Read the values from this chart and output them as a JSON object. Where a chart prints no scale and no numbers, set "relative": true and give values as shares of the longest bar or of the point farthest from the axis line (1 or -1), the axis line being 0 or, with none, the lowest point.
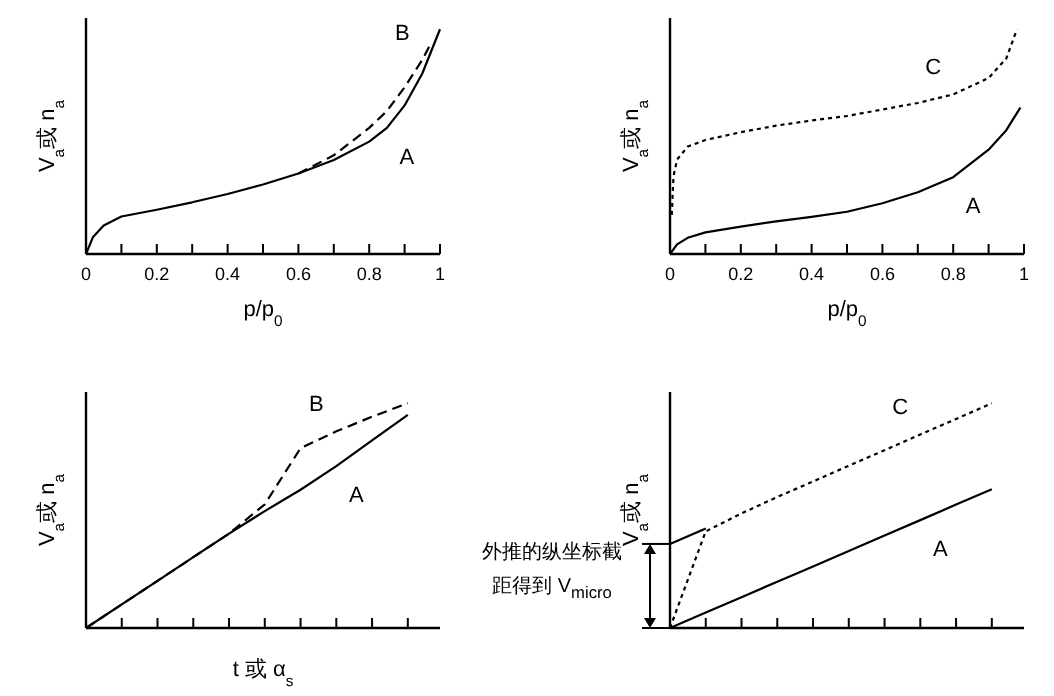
{
  "chart_data": [
    {
      "type": "line",
      "xlabel": "p/p$_{0}$",
      "ylabel": "V$_{a}$或 n$_{a}$",
      "relative": true,
      "xlim": [
        0,
        1
      ],
      "xticks": [
        0,
        {
          "value": 0.1,
          "label": null
        },
        0.2,
        {
          "value": 0.3,
          "label": null
        },
        0.4,
        {
          "value": 0.5,
          "label": null
        },
        0.6,
        {
          "value": 0.7,
          "label": null
        },
        0.8,
        {
          "value": 0.9,
          "label": null
        },
        1
      ],
      "series": [
        {
          "name": "A",
          "color": "#000000",
          "line_style": "solid",
          "x": [
            0,
            0.02,
            0.05,
            0.1,
            0.2,
            0.3,
            0.4,
            0.5,
            0.6,
            0.7,
            0.8,
            0.85,
            0.9,
            0.95,
            1
          ],
          "values": [
            0,
            0.076,
            0.127,
            0.167,
            0.197,
            0.23,
            0.267,
            0.309,
            0.358,
            0.418,
            0.5,
            0.561,
            0.661,
            0.803,
            1
          ]
        },
        {
          "name": "B",
          "color": "#000000",
          "line_style": "dashed",
          "x": [
            0.6,
            0.7,
            0.8,
            0.85,
            0.9,
            0.95,
            0.97
          ],
          "values": [
            0.358,
            0.439,
            0.561,
            0.636,
            0.742,
            0.864,
            0.924
          ]
        }
      ]
    },
    {
      "type": "line",
      "xlabel": "p/p$_{0}$",
      "ylabel": "V$_{a}$或 n$_{a}$",
      "relative": true,
      "xlim": [
        0,
        1
      ],
      "xticks": [
        0,
        {
          "value": 0.1,
          "label": null
        },
        0.2,
        {
          "value": 0.3,
          "label": null
        },
        0.4,
        {
          "value": 0.5,
          "label": null
        },
        0.6,
        {
          "value": 0.7,
          "label": null
        },
        0.8,
        {
          "value": 0.9,
          "label": null
        },
        1
      ],
      "series": [
        {
          "name": "C",
          "color": "#000000",
          "line_style": "dotted",
          "x": [
            0.005,
            0.01,
            0.02,
            0.05,
            0.1,
            0.2,
            0.3,
            0.4,
            0.5,
            0.6,
            0.7,
            0.8,
            0.9,
            0.95,
            0.98
          ],
          "values": [
            0.174,
            0.348,
            0.42,
            0.478,
            0.507,
            0.542,
            0.571,
            0.594,
            0.614,
            0.643,
            0.672,
            0.71,
            0.783,
            0.87,
            1
          ]
        },
        {
          "name": "A",
          "color": "#000000",
          "line_style": "solid",
          "x": [
            0,
            0.02,
            0.05,
            0.1,
            0.2,
            0.3,
            0.4,
            0.5,
            0.6,
            0.7,
            0.8,
            0.9,
            0.95,
            0.99
          ],
          "values": [
            0,
            0.043,
            0.072,
            0.096,
            0.122,
            0.145,
            0.165,
            0.188,
            0.226,
            0.275,
            0.342,
            0.464,
            0.551,
            0.652
          ]
        }
      ]
    },
    {
      "type": "line",
      "xlabel": "t 或 α$_{s}$",
      "ylabel": "V$_{a}$或 n$_{a}$",
      "relative": true,
      "categories": [
        null,
        null,
        null,
        null,
        null,
        null,
        null,
        null,
        null,
        null
      ],
      "series": [
        {
          "name": "B",
          "color": "#000000",
          "line_style": "dashed",
          "values": [
            0,
            0.105,
            0.21,
            0.315,
            0.42,
            0.55,
            0.8,
            0.875,
            0.94,
            1
          ]
        },
        {
          "name": "A",
          "color": "#000000",
          "line_style": "solid",
          "values": [
            0,
            0.105,
            0.21,
            0.315,
            0.42,
            0.52,
            0.615,
            0.72,
            0.835,
            0.948
          ]
        }
      ]
    },
    {
      "type": "line",
      "ylabel": "V$_{a}$或 n$_{a}$",
      "relative": true,
      "categories": [
        null,
        null,
        null,
        null,
        null,
        null,
        null,
        null,
        null,
        null
      ],
      "annotations": [
        "外推的纵坐标截距得到 V$_{micro}$"
      ],
      "series": [
        {
          "name": "C",
          "color": "#000000",
          "line_style": "dotted",
          "values": [
            0,
            0.43,
            0.51,
            0.583,
            0.652,
            0.722,
            0.791,
            0.861,
            0.93,
            1
          ]
        },
        {
          "color": "#000000",
          "line_style": "solid",
          "values": [
            0.374,
            0.443,
            null,
            null,
            null,
            null,
            null,
            null,
            null,
            null
          ]
        },
        {
          "name": "A",
          "color": "#000000",
          "line_style": "solid",
          "values": [
            0,
            0.069,
            0.137,
            0.206,
            0.274,
            0.343,
            0.412,
            0.48,
            0.549,
            0.617
          ]
        }
      ]
    }
  ]
}
